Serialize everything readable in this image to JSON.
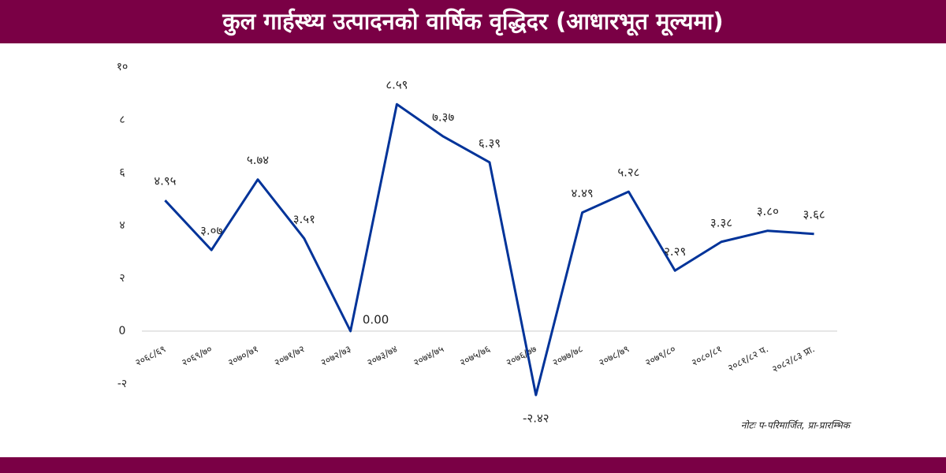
{
  "chart_data": {
    "type": "line",
    "title": "कुल गार्हस्थ्य उत्पादनको वार्षिक वृद्धिदर  (आधारभूत मूल्यमा)",
    "note": "नोटः प-परिमार्जित, प्रा-प्रारम्भिक",
    "categories": [
      "२०६८/६९",
      "२०६९/७०",
      "२०७०/७१",
      "२०७१/७२",
      "२०७२/७३",
      "२०७३/७४",
      "२०७४/७५",
      "२०७५/७६",
      "२०७६/७७",
      "२०७७/७८",
      "२०७८/७९",
      "२०७९/८०",
      "२०८०/८१",
      "२०८१/८२ प.",
      "२०८२/८३ प्रा."
    ],
    "series": [
      {
        "color": "#003399",
        "values": [
          4.95,
          3.07,
          5.74,
          3.51,
          0.0,
          8.59,
          7.37,
          6.39,
          -2.42,
          4.49,
          5.28,
          2.29,
          3.38,
          3.8,
          3.68
        ],
        "value_labels": [
          "४.९५",
          "३.०७",
          "५.७४",
          "३.५१",
          "0.00",
          "८.५९",
          "७.३७",
          "६.३९",
          "-२.४२",
          "४.४९",
          "५.२८",
          "२.२९",
          "३.३८",
          "३.८०",
          "३.६८"
        ]
      }
    ],
    "ylim": [
      -2,
      10
    ],
    "yticks": [
      {
        "value": -2,
        "label": "-२"
      },
      0,
      {
        "value": 2,
        "label": "२"
      },
      {
        "value": 4,
        "label": "४"
      },
      {
        "value": 6,
        "label": "६"
      },
      {
        "value": 8,
        "label": "८"
      },
      {
        "value": 10,
        "label": "१०"
      }
    ]
  }
}
